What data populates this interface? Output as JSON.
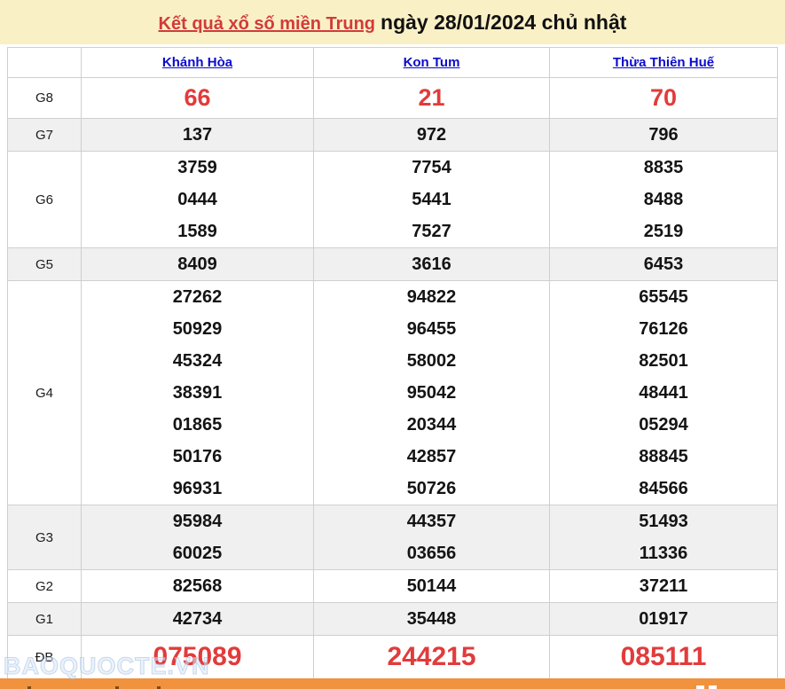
{
  "header": {
    "title_link": "Kết quả xổ số miền Trung",
    "title_rest": "ngày 28/01/2024 chủ nhật"
  },
  "watermark": "BAOQUOCTE.VN",
  "colors": {
    "banner_bg": "#faf0c6",
    "link_red": "#d13b3b",
    "number_red": "#e23b3b",
    "header_blue": "#0b0bce",
    "alt_row_bg": "#f0f0f0",
    "border": "#cfcfcf",
    "footer_orange": "#f0923e"
  },
  "table": {
    "columns": [
      "Khánh Hòa",
      "Kon Tum",
      "Thừa Thiên Huế"
    ],
    "rows": [
      {
        "label": "G8",
        "style": "red-large",
        "cells": [
          [
            "66"
          ],
          [
            "21"
          ],
          [
            "70"
          ]
        ]
      },
      {
        "label": "G7",
        "cells": [
          [
            "137"
          ],
          [
            "972"
          ],
          [
            "796"
          ]
        ]
      },
      {
        "label": "G6",
        "cells": [
          [
            "3759",
            "0444",
            "1589"
          ],
          [
            "7754",
            "5441",
            "7527"
          ],
          [
            "8835",
            "8488",
            "2519"
          ]
        ]
      },
      {
        "label": "G5",
        "cells": [
          [
            "8409"
          ],
          [
            "3616"
          ],
          [
            "6453"
          ]
        ]
      },
      {
        "label": "G4",
        "cells": [
          [
            "27262",
            "50929",
            "45324",
            "38391",
            "01865",
            "50176",
            "96931"
          ],
          [
            "94822",
            "96455",
            "58002",
            "95042",
            "20344",
            "42857",
            "50726"
          ],
          [
            "65545",
            "76126",
            "82501",
            "48441",
            "05294",
            "88845",
            "84566"
          ]
        ]
      },
      {
        "label": "G3",
        "cells": [
          [
            "95984",
            "60025"
          ],
          [
            "44357",
            "03656"
          ],
          [
            "51493",
            "11336"
          ]
        ]
      },
      {
        "label": "G2",
        "cells": [
          [
            "82568"
          ],
          [
            "50144"
          ],
          [
            "37211"
          ]
        ]
      },
      {
        "label": "G1",
        "cells": [
          [
            "42734"
          ],
          [
            "35448"
          ],
          [
            "01917"
          ]
        ]
      },
      {
        "label": "ĐB",
        "style": "red-xlarge",
        "cells": [
          [
            "075089"
          ],
          [
            "244215"
          ],
          [
            "085111"
          ]
        ]
      }
    ]
  }
}
